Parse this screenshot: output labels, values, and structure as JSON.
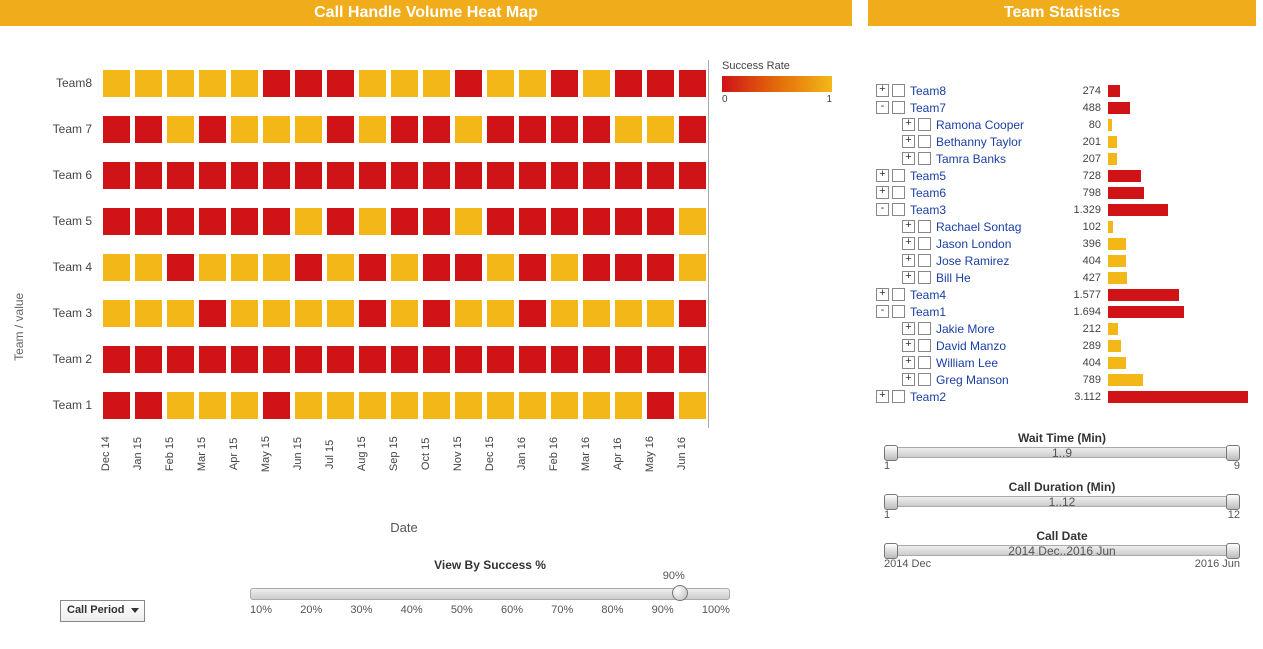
{
  "colors": {
    "accent": "#f0ac1b",
    "red": "#cf1317",
    "orange": "#e99614",
    "yellow": "#f3b718",
    "link": "#1a3fa3"
  },
  "left": {
    "title": "Call Handle Volume Heat Map",
    "y_axis_label": "Team / value",
    "x_axis_label": "Date",
    "teams": [
      "Team 1",
      "Team 2",
      "Team 3",
      "Team 4",
      "Team 5",
      "Team 6",
      "Team 7",
      "Team8"
    ],
    "dates": [
      "Dec 14",
      "Jan 15",
      "Feb 15",
      "Mar 15",
      "Apr 15",
      "May 15",
      "Jun 15",
      "Jul 15",
      "Aug 15",
      "Sep 15",
      "Oct 15",
      "Nov 15",
      "Dec 15",
      "Jan 16",
      "Feb 16",
      "Mar 16",
      "Apr 16",
      "May 16",
      "Jun 16"
    ],
    "legend": {
      "title": "Success Rate",
      "start_color": "#cf1317",
      "end_color": "#f3b718",
      "min_label": "0",
      "max_label": "1"
    },
    "heat": [
      [
        "#cf1317",
        "#cf1317",
        "#f3b718",
        "#f3b718",
        "#f3b718",
        "#cf1317",
        "#f3b718",
        "#f3b718",
        "#f3b718",
        "#f3b718",
        "#f3b718",
        "#f3b718",
        "#f3b718",
        "#f3b718",
        "#f3b718",
        "#f3b718",
        "#f3b718",
        "#cf1317",
        "#f3b718"
      ],
      [
        "#cf1317",
        "#cf1317",
        "#cf1317",
        "#cf1317",
        "#cf1317",
        "#cf1317",
        "#cf1317",
        "#cf1317",
        "#cf1317",
        "#cf1317",
        "#cf1317",
        "#cf1317",
        "#cf1317",
        "#cf1317",
        "#cf1317",
        "#cf1317",
        "#cf1317",
        "#cf1317",
        "#cf1317"
      ],
      [
        "#f3b718",
        "#f3b718",
        "#f3b718",
        "#cf1317",
        "#f3b718",
        "#f3b718",
        "#f3b718",
        "#f3b718",
        "#cf1317",
        "#f3b718",
        "#cf1317",
        "#f3b718",
        "#f3b718",
        "#cf1317",
        "#f3b718",
        "#f3b718",
        "#f3b718",
        "#f3b718",
        "#cf1317"
      ],
      [
        "#f3b718",
        "#f3b718",
        "#cf1317",
        "#f3b718",
        "#f3b718",
        "#f3b718",
        "#cf1317",
        "#f3b718",
        "#cf1317",
        "#f3b718",
        "#cf1317",
        "#cf1317",
        "#f3b718",
        "#cf1317",
        "#f3b718",
        "#cf1317",
        "#cf1317",
        "#cf1317",
        "#f3b718"
      ],
      [
        "#cf1317",
        "#cf1317",
        "#cf1317",
        "#cf1317",
        "#cf1317",
        "#cf1317",
        "#f3b718",
        "#cf1317",
        "#f3b718",
        "#cf1317",
        "#cf1317",
        "#f3b718",
        "#cf1317",
        "#cf1317",
        "#cf1317",
        "#cf1317",
        "#cf1317",
        "#cf1317",
        "#f3b718"
      ],
      [
        "#cf1317",
        "#cf1317",
        "#cf1317",
        "#cf1317",
        "#cf1317",
        "#cf1317",
        "#cf1317",
        "#cf1317",
        "#cf1317",
        "#cf1317",
        "#cf1317",
        "#cf1317",
        "#cf1317",
        "#cf1317",
        "#cf1317",
        "#cf1317",
        "#cf1317",
        "#cf1317",
        "#cf1317"
      ],
      [
        "#cf1317",
        "#cf1317",
        "#f3b718",
        "#cf1317",
        "#f3b718",
        "#f3b718",
        "#f3b718",
        "#cf1317",
        "#f3b718",
        "#cf1317",
        "#cf1317",
        "#f3b718",
        "#cf1317",
        "#cf1317",
        "#cf1317",
        "#cf1317",
        "#f3b718",
        "#f3b718",
        "#cf1317"
      ],
      [
        "#f3b718",
        "#f3b718",
        "#f3b718",
        "#f3b718",
        "#f3b718",
        "#cf1317",
        "#cf1317",
        "#cf1317",
        "#f3b718",
        "#f3b718",
        "#f3b718",
        "#cf1317",
        "#f3b718",
        "#f3b718",
        "#cf1317",
        "#f3b718",
        "#cf1317",
        "#cf1317",
        "#cf1317"
      ]
    ],
    "dropdown": {
      "label": "Call Period"
    },
    "slider": {
      "label": "View By Success %",
      "ticks": [
        "10%",
        "20%",
        "30%",
        "40%",
        "50%",
        "60%",
        "70%",
        "80%",
        "90%",
        "100%"
      ],
      "value_label": "90%",
      "value_pct": 88
    }
  },
  "right": {
    "title": "Team Statistics",
    "max_bar": 3112,
    "rows": [
      {
        "level": 0,
        "toggle": "+",
        "label": "Team8",
        "value": "274",
        "num": 274,
        "color": "#cf1317"
      },
      {
        "level": 0,
        "toggle": "-",
        "label": "Team7",
        "value": "488",
        "num": 488,
        "color": "#cf1317"
      },
      {
        "level": 1,
        "toggle": "+",
        "label": "Ramona Cooper",
        "value": "80",
        "num": 80,
        "color": "#f3b718"
      },
      {
        "level": 1,
        "toggle": "+",
        "label": "Bethanny Taylor",
        "value": "201",
        "num": 201,
        "color": "#f3b718"
      },
      {
        "level": 1,
        "toggle": "+",
        "label": "Tamra Banks",
        "value": "207",
        "num": 207,
        "color": "#f3b718"
      },
      {
        "level": 0,
        "toggle": "+",
        "label": "Team5",
        "value": "728",
        "num": 728,
        "color": "#cf1317"
      },
      {
        "level": 0,
        "toggle": "+",
        "label": "Team6",
        "value": "798",
        "num": 798,
        "color": "#cf1317"
      },
      {
        "level": 0,
        "toggle": "-",
        "label": "Team3",
        "value": "1.329",
        "num": 1329,
        "color": "#cf1317"
      },
      {
        "level": 1,
        "toggle": "+",
        "label": "Rachael Sontag",
        "value": "102",
        "num": 102,
        "color": "#f3b718"
      },
      {
        "level": 1,
        "toggle": "+",
        "label": "Jason London",
        "value": "396",
        "num": 396,
        "color": "#f3b718"
      },
      {
        "level": 1,
        "toggle": "+",
        "label": "Jose Ramirez",
        "value": "404",
        "num": 404,
        "color": "#f3b718"
      },
      {
        "level": 1,
        "toggle": "+",
        "label": "Bill He",
        "value": "427",
        "num": 427,
        "color": "#f3b718"
      },
      {
        "level": 0,
        "toggle": "+",
        "label": "Team4",
        "value": "1.577",
        "num": 1577,
        "color": "#cf1317"
      },
      {
        "level": 0,
        "toggle": "-",
        "label": "Team1",
        "value": "1.694",
        "num": 1694,
        "color": "#cf1317"
      },
      {
        "level": 1,
        "toggle": "+",
        "label": "Jakie More",
        "value": "212",
        "num": 212,
        "color": "#f3b718"
      },
      {
        "level": 1,
        "toggle": "+",
        "label": "David Manzo",
        "value": "289",
        "num": 289,
        "color": "#f3b718"
      },
      {
        "level": 1,
        "toggle": "+",
        "label": "William Lee",
        "value": "404",
        "num": 404,
        "color": "#f3b718"
      },
      {
        "level": 1,
        "toggle": "+",
        "label": "Greg Manson",
        "value": "789",
        "num": 789,
        "color": "#f3b718"
      },
      {
        "level": 0,
        "toggle": "+",
        "label": "Team2",
        "value": "3.112",
        "num": 3112,
        "color": "#cf1317"
      }
    ],
    "ranges": [
      {
        "title": "Wait Time (Min)",
        "value": "1..9",
        "left": "1",
        "right": "9"
      },
      {
        "title": "Call Duration (Min)",
        "value": "1..12",
        "left": "1",
        "right": "12"
      },
      {
        "title": "Call Date",
        "value": "2014 Dec..2016 Jun",
        "left": "2014 Dec",
        "right": "2016 Jun"
      }
    ]
  }
}
